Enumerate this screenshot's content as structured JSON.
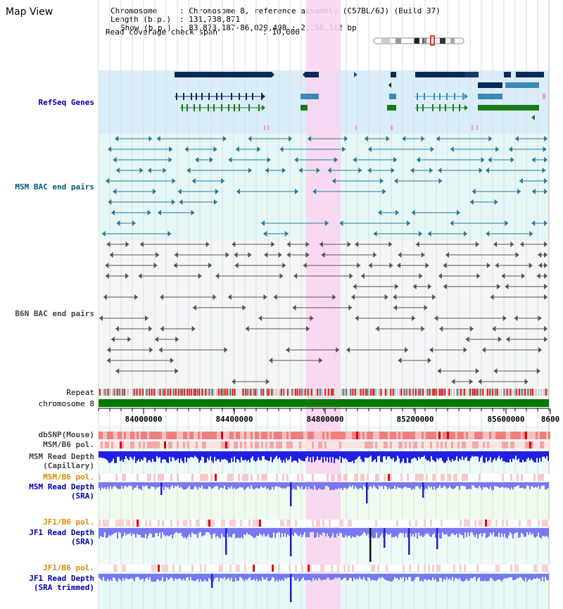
{
  "view_title": "Map View",
  "info": {
    "chromosome_key": "Chromosome",
    "chromosome_val": "Chromosome 8, reference assembly (C57BL/6J) (Build 37)",
    "length_key": "Length (b.p.)",
    "length_val": "131,738,871",
    "show_key": "Show (b.p.)",
    "show_val": "83,873,187-86,029,498 : 2,156,312 bp",
    "span_key": "Read coverage check span",
    "span_val": "10,000"
  },
  "tracks": {
    "refseq": "RefSeq Genes",
    "msm_bac": "MSM BAC end pairs",
    "b6n_bac": "B6N BAC end pairs",
    "repeat": "Repeat",
    "chrom": "chromosome 8",
    "dbsnp": "dbSNP(Mouse)",
    "msm_pol": "MSM/B6 pol.",
    "msm_depth_cap_1": "MSM Read Depth",
    "msm_depth_cap_2": "(Capillary)",
    "msm_pol2": "MSM/B6 pol.",
    "msm_depth_sra_1": "MSM Read Depth",
    "msm_depth_sra_2": "(SRA)",
    "jf1_pol": "JF1/B6 pol.",
    "jf1_depth_1": "JF1 Read Depth",
    "jf1_depth_2": "(SRA)",
    "jf1_pol2": "JF1/B6 pol.",
    "jf1_trim_1": "JF1 Read Depth",
    "jf1_trim_2": "(SRA trimmed)"
  },
  "ruler": {
    "ticks": [
      "84000000",
      "84400000",
      "84800000",
      "85200000",
      "85600000",
      "8600"
    ]
  },
  "colors": {
    "refseq_bg": "#daeefa",
    "bac_bg": "#e6f7f7",
    "highlight": "#f9d4f0",
    "gene_dark": "#0a2a5a",
    "gene_mid": "#3a8ab8",
    "gene_green": "#1a7a1a",
    "msm_bac": "#2a7a9a",
    "b6n_bac": "#555555",
    "depth_blue": "#2020e0",
    "depth_light": "#7878f0"
  }
}
